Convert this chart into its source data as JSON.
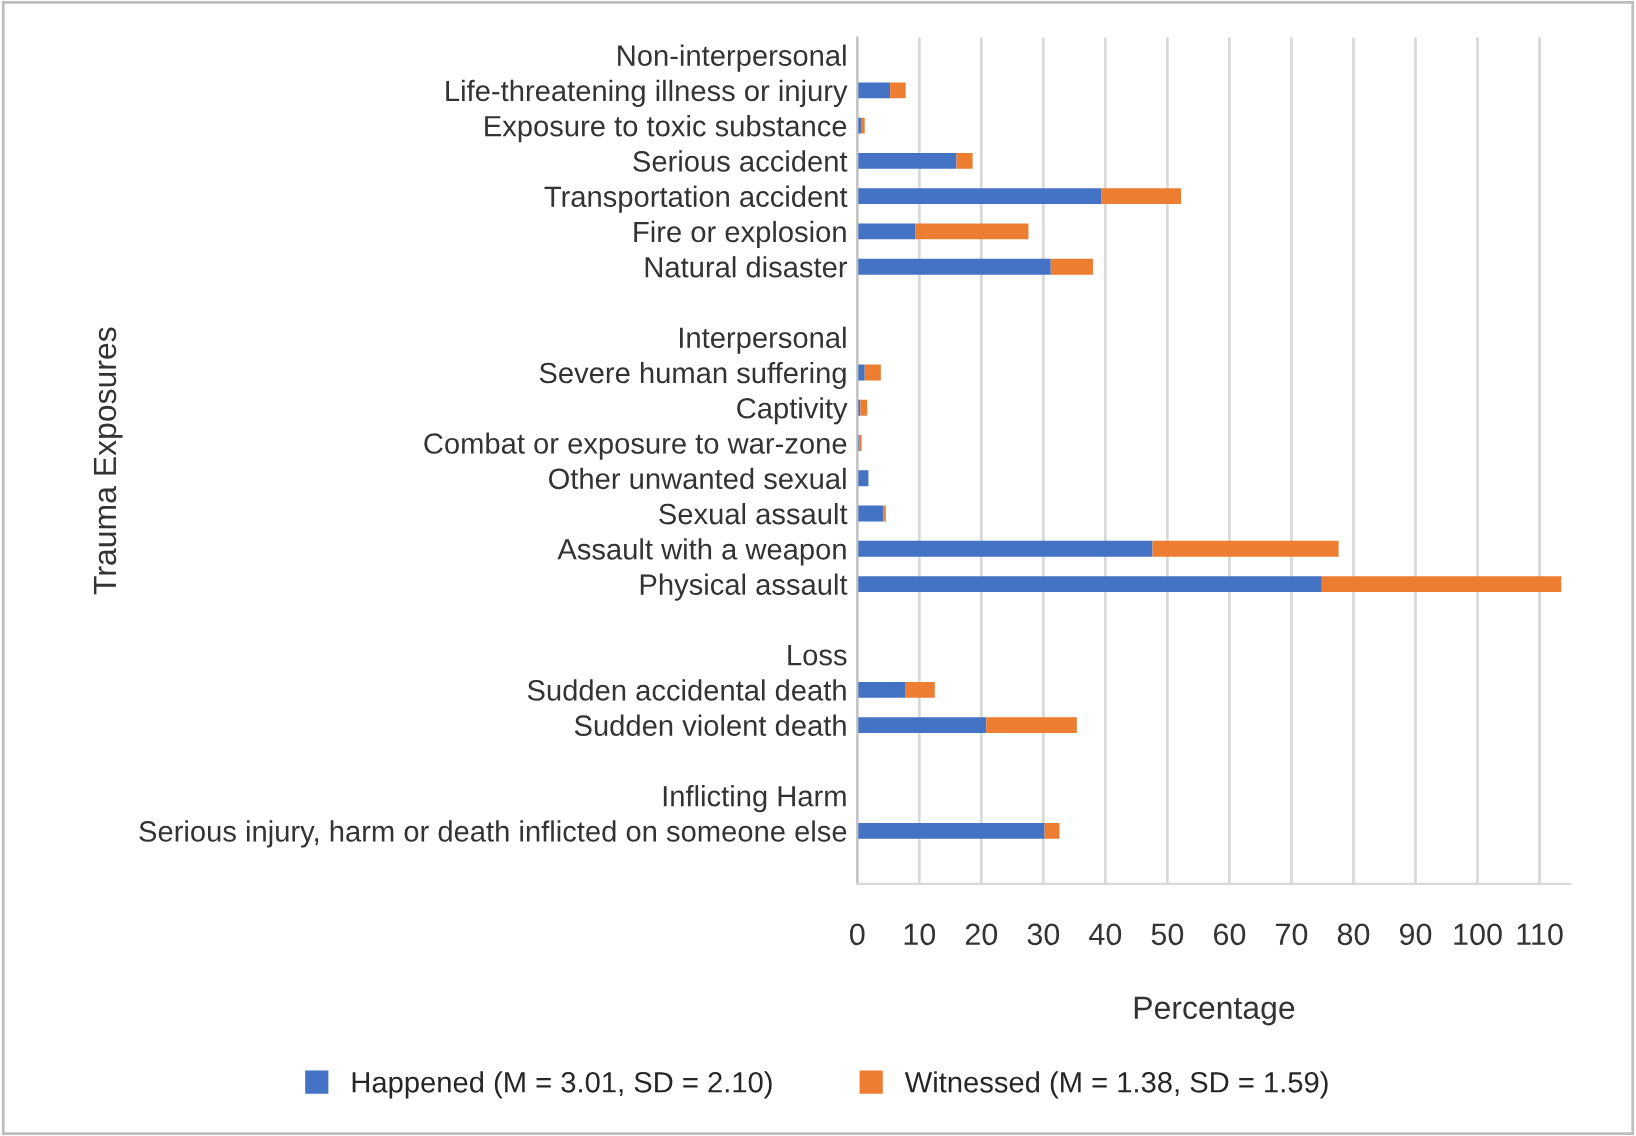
{
  "chart_data": {
    "type": "bar",
    "orientation": "horizontal",
    "stacked": true,
    "categories": [
      "Non-interpersonal",
      "Life-threatening illness or injury",
      "Exposure to toxic substance",
      "Serious accident",
      "Transportation accident",
      "Fire or explosion",
      "Natural disaster",
      null,
      "Interpersonal",
      "Severe human suffering",
      "Captivity",
      "Combat or exposure to war-zone",
      "Other unwanted sexual",
      "Sexual assault",
      "Assault with a weapon",
      "Physical assault",
      null,
      "Loss",
      "Sudden accidental death",
      "Sudden violent death",
      null,
      "Inflicting Harm",
      "Serious injury, harm or death inflicted on someone else",
      null
    ],
    "series": [
      {
        "name": "Happened (M = 3.01, SD = 2.10)",
        "color": "#4472c4",
        "values": [
          null,
          5.3,
          0.6,
          16.0,
          39.4,
          9.4,
          31.2,
          null,
          null,
          1.2,
          0.5,
          0.3,
          1.8,
          4.2,
          47.6,
          74.9,
          null,
          null,
          7.7,
          20.8,
          null,
          null,
          30.2,
          null
        ]
      },
      {
        "name": "Witnessed (M = 1.38, SD = 1.59)",
        "color": "#ed7d31",
        "values": [
          null,
          2.5,
          0.6,
          2.6,
          12.8,
          18.2,
          6.8,
          null,
          null,
          2.6,
          1.1,
          0.4,
          null,
          0.4,
          30.0,
          38.6,
          null,
          null,
          4.8,
          14.6,
          null,
          null,
          2.4,
          null
        ]
      }
    ],
    "xlim": [
      0,
      115
    ],
    "xticks": [
      0,
      10,
      20,
      30,
      40,
      50,
      60,
      70,
      80,
      90,
      100,
      110
    ],
    "xlabel": "Percentage",
    "ylabel": "Trauma Exposures",
    "grid": "x",
    "legend": "bottom"
  }
}
